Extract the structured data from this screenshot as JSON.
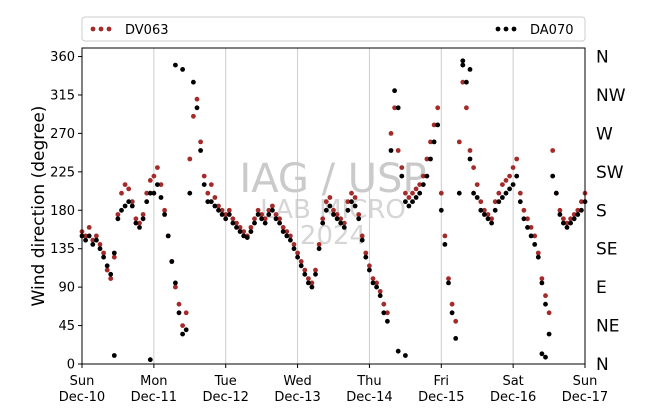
{
  "chart_data": {
    "type": "scatter",
    "ylabel": "Wind direction (degree)",
    "ylim": [
      0,
      370
    ],
    "yticks": [
      0,
      45,
      90,
      135,
      180,
      225,
      270,
      315,
      360
    ],
    "right_axis_labels": [
      "N",
      "NE",
      "E",
      "SE",
      "S",
      "SW",
      "W",
      "NW",
      "N"
    ],
    "xlim": [
      0,
      7
    ],
    "xticks": [
      {
        "x": 0,
        "day": "Sun",
        "date": "Dec-10"
      },
      {
        "x": 1,
        "day": "Mon",
        "date": "Dec-11"
      },
      {
        "x": 2,
        "day": "Tue",
        "date": "Dec-12"
      },
      {
        "x": 3,
        "day": "Wed",
        "date": "Dec-13"
      },
      {
        "x": 4,
        "day": "Thu",
        "date": "Dec-14"
      },
      {
        "x": 5,
        "day": "Fri",
        "date": "Dec-15"
      },
      {
        "x": 6,
        "day": "Sat",
        "date": "Dec-16"
      },
      {
        "x": 7,
        "day": "Sun",
        "date": "Dec-17"
      }
    ],
    "grid": "vertical",
    "legend_placement": "top, outside plot",
    "watermark": [
      "IAG / USP",
      "LAB MICRO",
      "2024"
    ],
    "series": [
      {
        "name": "DV063",
        "color": "#a52a2a",
        "x": [
          0.0,
          0.05,
          0.1,
          0.15,
          0.2,
          0.25,
          0.3,
          0.35,
          0.4,
          0.45,
          0.5,
          0.55,
          0.6,
          0.65,
          0.7,
          0.75,
          0.8,
          0.85,
          0.9,
          0.95,
          1.0,
          1.05,
          1.1,
          1.15,
          1.2,
          1.25,
          1.3,
          1.35,
          1.4,
          1.45,
          1.5,
          1.55,
          1.6,
          1.65,
          1.7,
          1.75,
          1.8,
          1.85,
          1.9,
          1.95,
          2.0,
          2.05,
          2.1,
          2.15,
          2.2,
          2.25,
          2.3,
          2.35,
          2.4,
          2.45,
          2.5,
          2.55,
          2.6,
          2.65,
          2.7,
          2.75,
          2.8,
          2.85,
          2.9,
          2.95,
          3.0,
          3.05,
          3.1,
          3.15,
          3.2,
          3.25,
          3.3,
          3.35,
          3.4,
          3.45,
          3.5,
          3.55,
          3.6,
          3.65,
          3.7,
          3.75,
          3.8,
          3.85,
          3.9,
          3.95,
          4.0,
          4.05,
          4.1,
          4.15,
          4.2,
          4.25,
          4.3,
          4.35,
          4.4,
          4.45,
          4.5,
          4.55,
          4.6,
          4.65,
          4.7,
          4.75,
          4.8,
          4.85,
          4.9,
          4.95,
          5.0,
          5.05,
          5.1,
          5.15,
          5.2,
          5.25,
          5.3,
          5.35,
          5.4,
          5.45,
          5.5,
          5.55,
          5.6,
          5.65,
          5.7,
          5.75,
          5.8,
          5.85,
          5.9,
          5.95,
          6.0,
          6.05,
          6.1,
          6.15,
          6.2,
          6.25,
          6.3,
          6.35,
          6.4,
          6.45,
          6.5,
          6.55,
          6.6,
          6.65,
          6.7,
          6.75,
          6.8,
          6.85,
          6.9,
          6.95,
          7.0
        ],
        "y": [
          155,
          150,
          160,
          145,
          150,
          140,
          130,
          110,
          100,
          125,
          175,
          200,
          210,
          205,
          190,
          170,
          165,
          175,
          200,
          215,
          220,
          230,
          210,
          180,
          150,
          120,
          90,
          70,
          45,
          60,
          240,
          290,
          310,
          260,
          220,
          200,
          210,
          195,
          185,
          180,
          175,
          180,
          170,
          165,
          160,
          155,
          150,
          160,
          170,
          180,
          175,
          170,
          180,
          185,
          175,
          170,
          160,
          155,
          150,
          140,
          130,
          120,
          110,
          100,
          95,
          110,
          140,
          170,
          190,
          195,
          180,
          175,
          170,
          165,
          190,
          200,
          195,
          175,
          150,
          130,
          115,
          100,
          95,
          85,
          70,
          60,
          270,
          300,
          250,
          230,
          200,
          195,
          200,
          205,
          210,
          220,
          240,
          260,
          280,
          300,
          200,
          150,
          100,
          70,
          50,
          260,
          330,
          300,
          250,
          230,
          210,
          190,
          180,
          175,
          170,
          190,
          200,
          210,
          215,
          220,
          230,
          240,
          200,
          180,
          170,
          160,
          150,
          130,
          100,
          80,
          60,
          250,
          200,
          180,
          170,
          165,
          170,
          175,
          180,
          190,
          200
        ]
      },
      {
        "name": "DA070",
        "color": "#000000",
        "x": [
          0.0,
          0.05,
          0.1,
          0.15,
          0.2,
          0.25,
          0.3,
          0.35,
          0.4,
          0.45,
          0.5,
          0.55,
          0.6,
          0.65,
          0.7,
          0.75,
          0.8,
          0.85,
          0.9,
          0.95,
          1.0,
          1.05,
          1.1,
          1.15,
          1.2,
          1.25,
          1.3,
          1.35,
          1.4,
          1.45,
          1.5,
          1.55,
          1.6,
          1.65,
          1.7,
          1.75,
          1.8,
          1.85,
          1.9,
          1.95,
          2.0,
          2.05,
          2.1,
          2.15,
          2.2,
          2.25,
          2.3,
          2.35,
          2.4,
          2.45,
          2.5,
          2.55,
          2.6,
          2.65,
          2.7,
          2.75,
          2.8,
          2.85,
          2.9,
          2.95,
          3.0,
          3.05,
          3.1,
          3.15,
          3.2,
          3.25,
          3.3,
          3.35,
          3.4,
          3.45,
          3.5,
          3.55,
          3.6,
          3.65,
          3.7,
          3.75,
          3.8,
          3.85,
          3.9,
          3.95,
          4.0,
          4.05,
          4.1,
          4.15,
          4.2,
          4.25,
          4.3,
          4.35,
          4.4,
          4.45,
          4.5,
          4.55,
          4.6,
          4.65,
          4.7,
          4.75,
          4.8,
          4.85,
          4.9,
          4.95,
          5.0,
          5.05,
          5.1,
          5.15,
          5.2,
          5.25,
          5.3,
          5.35,
          5.4,
          5.45,
          5.5,
          5.55,
          5.6,
          5.65,
          5.7,
          5.75,
          5.8,
          5.85,
          5.9,
          5.95,
          6.0,
          6.05,
          6.1,
          6.15,
          6.2,
          6.25,
          6.3,
          6.35,
          6.4,
          6.45,
          6.5,
          6.55,
          6.6,
          6.65,
          6.7,
          6.75,
          6.8,
          6.85,
          6.9,
          6.95,
          7.0,
          0.45,
          0.95,
          1.3,
          1.4,
          4.4,
          4.5,
          5.3,
          5.4,
          6.4,
          6.45
        ],
        "y": [
          150,
          145,
          150,
          140,
          145,
          135,
          125,
          115,
          105,
          130,
          170,
          180,
          185,
          190,
          185,
          165,
          160,
          170,
          190,
          200,
          200,
          210,
          195,
          175,
          150,
          120,
          95,
          60,
          35,
          40,
          200,
          330,
          300,
          250,
          210,
          190,
          190,
          185,
          180,
          175,
          170,
          175,
          165,
          160,
          155,
          150,
          148,
          155,
          165,
          175,
          170,
          165,
          175,
          180,
          170,
          165,
          155,
          150,
          145,
          135,
          125,
          115,
          105,
          95,
          90,
          105,
          135,
          165,
          180,
          185,
          175,
          170,
          165,
          160,
          180,
          190,
          185,
          170,
          145,
          125,
          110,
          95,
          90,
          80,
          60,
          50,
          250,
          320,
          300,
          220,
          190,
          185,
          190,
          195,
          200,
          210,
          220,
          240,
          260,
          280,
          180,
          140,
          95,
          60,
          30,
          200,
          350,
          330,
          240,
          200,
          195,
          180,
          175,
          170,
          165,
          180,
          190,
          195,
          200,
          205,
          210,
          220,
          190,
          170,
          160,
          150,
          140,
          125,
          95,
          70,
          35,
          220,
          200,
          175,
          165,
          160,
          165,
          170,
          175,
          180,
          190,
          10,
          5,
          350,
          345,
          15,
          10,
          355,
          345,
          12,
          8
        ]
      }
    ]
  }
}
